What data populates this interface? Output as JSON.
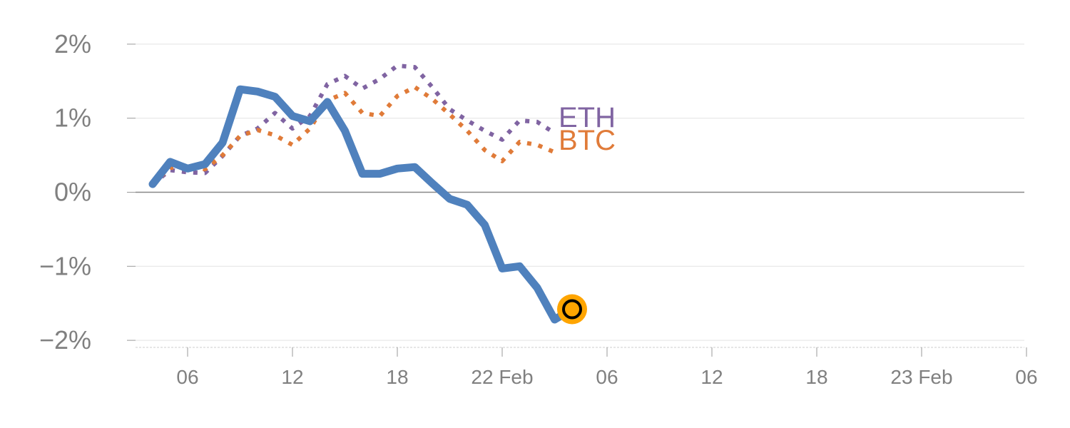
{
  "chart_data": {
    "type": "line",
    "title": "",
    "xlabel": "",
    "ylabel": "",
    "ylim": [
      -2,
      2
    ],
    "y_ticks": [
      {
        "value": 2,
        "label": "2%"
      },
      {
        "value": 1,
        "label": "1%"
      },
      {
        "value": 0,
        "label": "0%"
      },
      {
        "value": -1,
        "label": "−1%"
      },
      {
        "value": -2,
        "label": "−2%"
      }
    ],
    "x_unit": "hours since Feb 21 00:00",
    "xlim": [
      2,
      54
    ],
    "x_ticks": [
      {
        "value": 6,
        "label": "06"
      },
      {
        "value": 12,
        "label": "12"
      },
      {
        "value": 18,
        "label": "18"
      },
      {
        "value": 24,
        "label": "22 Feb"
      },
      {
        "value": 30,
        "label": "06"
      },
      {
        "value": 36,
        "label": "12"
      },
      {
        "value": 42,
        "label": "18"
      },
      {
        "value": 48,
        "label": "23 Feb"
      },
      {
        "value": 54,
        "label": "06"
      }
    ],
    "grid": true,
    "x": [
      4,
      5,
      6,
      7,
      8,
      9,
      10,
      11,
      12,
      13,
      14,
      15,
      16,
      17,
      18,
      19,
      20,
      21,
      22,
      23,
      24,
      25,
      26,
      27
    ],
    "series": [
      {
        "name": "main",
        "label": "",
        "color": "#4f81bd",
        "style": "solid",
        "values": [
          0.11,
          0.41,
          0.32,
          0.38,
          0.67,
          1.39,
          1.36,
          1.29,
          1.03,
          0.96,
          1.22,
          0.83,
          0.25,
          0.25,
          0.32,
          0.34,
          0.12,
          -0.09,
          -0.17,
          -0.44,
          -1.03,
          -1.0,
          -1.29,
          -1.72
        ]
      },
      {
        "name": "ETH",
        "label": "ETH",
        "color": "#8064a2",
        "style": "dotted",
        "values": [
          0.11,
          0.3,
          0.27,
          0.26,
          0.49,
          0.76,
          0.86,
          1.07,
          0.86,
          1.03,
          1.46,
          1.57,
          1.4,
          1.53,
          1.71,
          1.69,
          1.42,
          1.12,
          0.97,
          0.83,
          0.71,
          0.97,
          0.95,
          0.8
        ]
      },
      {
        "name": "BTC",
        "label": "BTC",
        "color": "#e07b39",
        "style": "dotted",
        "values": [
          0.11,
          0.33,
          0.35,
          0.31,
          0.5,
          0.76,
          0.84,
          0.77,
          0.64,
          0.86,
          1.24,
          1.34,
          1.07,
          1.03,
          1.3,
          1.42,
          1.26,
          1.05,
          0.83,
          0.57,
          0.42,
          0.68,
          0.64,
          0.54
        ]
      }
    ],
    "last_point": {
      "x": 28,
      "y": -1.58,
      "color": "#ffa500"
    }
  }
}
